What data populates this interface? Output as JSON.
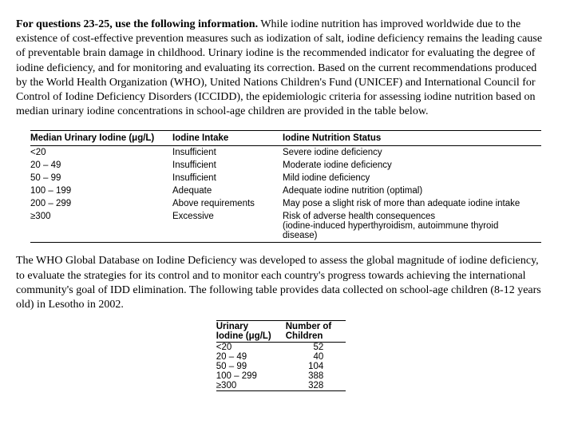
{
  "intro": {
    "lead": "For questions 23-25, use the following information.",
    "body": " While iodine nutrition has improved worldwide due to the existence of cost-effective prevention measures such as iodization of salt, iodine deficiency remains the leading cause of preventable brain damage in childhood. Urinary iodine is the recommended indicator for evaluating the degree of iodine deficiency, and for monitoring and evaluating its correction. Based on the current recommendations produced by the World Health Organization (WHO), United Nations Children's Fund (UNICEF) and International Council for Control of Iodine Deficiency Disorders (ICCIDD), the epidemiologic criteria for assessing iodine nutrition based on median urinary iodine concentrations in school-age children are provided in the table below."
  },
  "criteria": {
    "headers": [
      "Median Urinary Iodine (μg/L)",
      "Iodine Intake",
      "Iodine Nutrition Status"
    ],
    "rows": [
      [
        "<20",
        "Insufficient",
        "Severe iodine deficiency"
      ],
      [
        "20 – 49",
        "Insufficient",
        "Moderate iodine deficiency"
      ],
      [
        "50 – 99",
        "Insufficient",
        "Mild iodine deficiency"
      ],
      [
        "100 – 199",
        "Adequate",
        "Adequate iodine nutrition (optimal)"
      ],
      [
        "200 – 299",
        "Above requirements",
        "May pose a slight risk of more than adequate iodine intake"
      ],
      [
        "≥300",
        "Excessive",
        "Risk of adverse health consequences\n(iodine-induced hyperthyroidism, autoimmune thyroid disease)"
      ]
    ],
    "col_widths": [
      "170px",
      "130px",
      "auto"
    ]
  },
  "mid": {
    "text": "The WHO Global Database on Iodine Deficiency was developed to assess the global magnitude of iodine deficiency, to evaluate the strategies for its control and to monitor each country's progress towards achieving the international community's goal of IDD elimination. The following table provides data collected on school-age children (8-12 years old) in Lesotho in 2002."
  },
  "data": {
    "headers": [
      "Urinary\nIodine (μg/L)",
      "Number of\nChildren"
    ],
    "rows": [
      [
        "<20",
        "52"
      ],
      [
        "20 – 49",
        "40"
      ],
      [
        "50 – 99",
        "104"
      ],
      [
        "100 – 299",
        "388"
      ],
      [
        "≥300",
        "328"
      ]
    ]
  }
}
